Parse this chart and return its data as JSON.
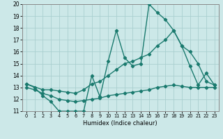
{
  "xlabel": "Humidex (Indice chaleur)",
  "xlim": [
    -0.5,
    23.5
  ],
  "ylim": [
    11,
    20
  ],
  "yticks": [
    11,
    12,
    13,
    14,
    15,
    16,
    17,
    18,
    19,
    20
  ],
  "xticks": [
    0,
    1,
    2,
    3,
    4,
    5,
    6,
    7,
    8,
    9,
    10,
    11,
    12,
    13,
    14,
    15,
    16,
    17,
    18,
    19,
    20,
    21,
    22,
    23
  ],
  "bg_color": "#cce8e8",
  "line_color": "#1a7a6e",
  "grid_color": "#aacfcf",
  "line1_x": [
    0,
    1,
    2,
    3,
    4,
    5,
    6,
    7,
    8,
    9,
    10,
    11,
    12,
    13,
    14,
    15,
    16,
    17,
    18,
    19,
    20,
    21,
    22,
    23
  ],
  "line1_y": [
    13.3,
    13.0,
    12.3,
    11.8,
    11.0,
    11.0,
    11.0,
    11.0,
    14.0,
    12.2,
    15.2,
    17.8,
    15.5,
    14.8,
    15.0,
    20.0,
    19.3,
    18.7,
    17.8,
    16.5,
    14.8,
    13.2,
    14.2,
    13.2
  ],
  "line2_x": [
    0,
    2,
    3,
    4,
    5,
    6,
    7,
    8,
    9,
    10,
    11,
    12,
    13,
    14,
    15,
    16,
    17,
    18,
    19,
    20,
    21,
    22,
    23
  ],
  "line2_y": [
    13.3,
    12.8,
    12.8,
    12.7,
    12.6,
    12.5,
    12.8,
    13.3,
    13.5,
    14.0,
    14.5,
    15.0,
    15.2,
    15.5,
    15.8,
    16.5,
    17.0,
    17.8,
    16.5,
    16.0,
    15.0,
    13.5,
    13.2
  ],
  "line3_x": [
    0,
    1,
    2,
    3,
    4,
    5,
    6,
    7,
    8,
    9,
    10,
    11,
    12,
    13,
    14,
    15,
    16,
    17,
    18,
    19,
    20,
    21,
    22,
    23
  ],
  "line3_y": [
    13.0,
    12.8,
    12.5,
    12.3,
    12.0,
    11.9,
    11.8,
    11.9,
    12.0,
    12.1,
    12.3,
    12.4,
    12.5,
    12.6,
    12.7,
    12.8,
    13.0,
    13.1,
    13.2,
    13.1,
    13.0,
    13.0,
    13.0,
    13.0
  ],
  "marker": "D",
  "markersize": 2.2,
  "linewidth": 1.0
}
